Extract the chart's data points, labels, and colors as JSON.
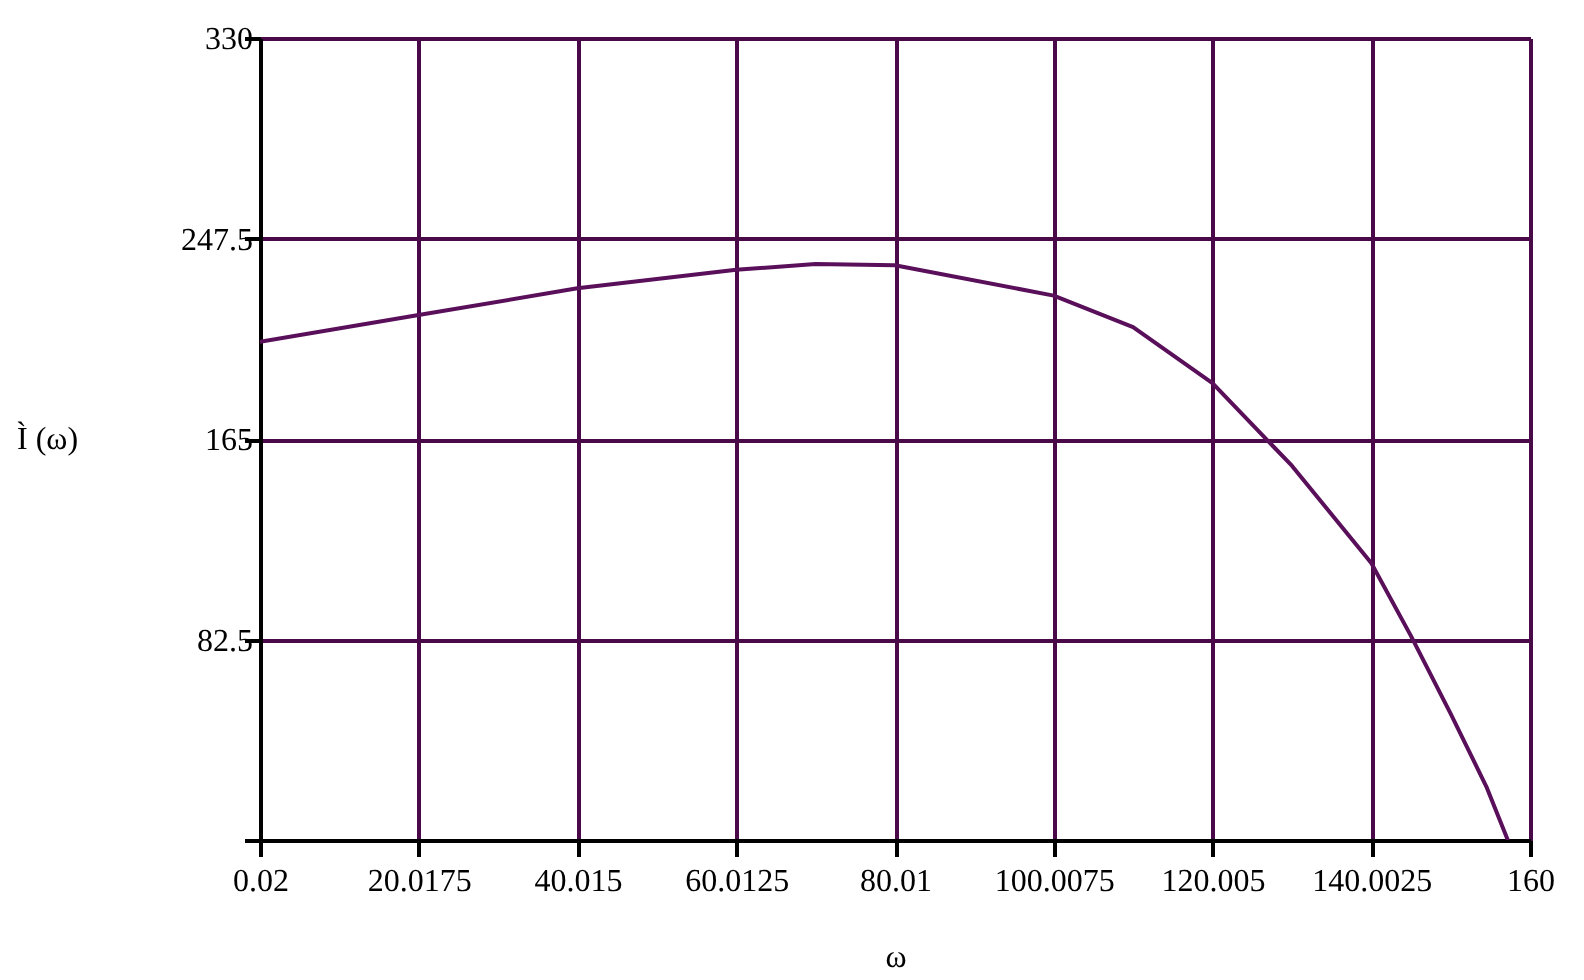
{
  "chart_data": {
    "type": "line",
    "xlabel": "ω",
    "ylabel": "Ì (ω)",
    "x": [
      0.02,
      20,
      40,
      60,
      70,
      80,
      100,
      110,
      120,
      130,
      140,
      145,
      150,
      154.5,
      157.2
    ],
    "series": [
      {
        "color": "#5a0f5a",
        "values": [
          205,
          216,
          227,
          234.6,
          237,
          236.5,
          224,
          211,
          188,
          154,
          114,
          84,
          52,
          22,
          0
        ]
      }
    ],
    "xlim": [
      0.02,
      160
    ],
    "xticks": [
      0.02,
      20.0175,
      40.015,
      60.0125,
      80.01,
      100.0075,
      120.005,
      140.0025,
      160
    ],
    "ylim": [
      0,
      330
    ],
    "yticks": [
      {
        "value": 0,
        "label": null
      },
      82.5,
      165,
      247.5,
      330
    ],
    "grid": true,
    "marker": "none",
    "line_style": "solid"
  }
}
